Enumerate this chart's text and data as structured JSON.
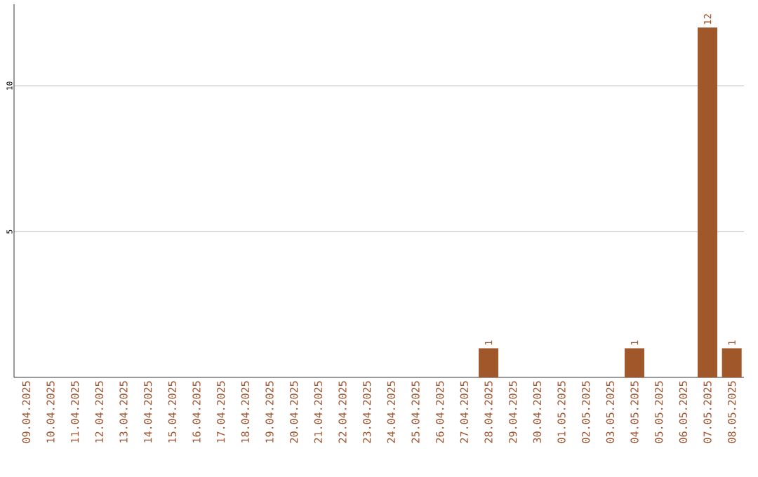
{
  "chart_data": {
    "type": "bar",
    "categories": [
      "09.04.2025",
      "10.04.2025",
      "11.04.2025",
      "12.04.2025",
      "13.04.2025",
      "14.04.2025",
      "15.04.2025",
      "16.04.2025",
      "17.04.2025",
      "18.04.2025",
      "19.04.2025",
      "20.04.2025",
      "21.04.2025",
      "22.04.2025",
      "23.04.2025",
      "24.04.2025",
      "25.04.2025",
      "26.04.2025",
      "27.04.2025",
      "28.04.2025",
      "29.04.2025",
      "30.04.2025",
      "01.05.2025",
      "02.05.2025",
      "03.05.2025",
      "04.05.2025",
      "05.05.2025",
      "06.05.2025",
      "07.05.2025",
      "08.05.2025"
    ],
    "values": [
      0,
      0,
      0,
      0,
      0,
      0,
      0,
      0,
      0,
      0,
      0,
      0,
      0,
      0,
      0,
      0,
      0,
      0,
      0,
      1,
      0,
      0,
      0,
      0,
      0,
      1,
      0,
      0,
      12,
      1
    ],
    "value_labels": [
      null,
      null,
      null,
      null,
      null,
      null,
      null,
      null,
      null,
      null,
      null,
      null,
      null,
      null,
      null,
      null,
      null,
      null,
      null,
      "1",
      null,
      null,
      null,
      null,
      null,
      "1",
      null,
      null,
      "12",
      "1"
    ],
    "color": "#a0572a",
    "ylim": [
      0,
      12.8
    ],
    "yticks": [
      5,
      10
    ],
    "grid": "y"
  }
}
